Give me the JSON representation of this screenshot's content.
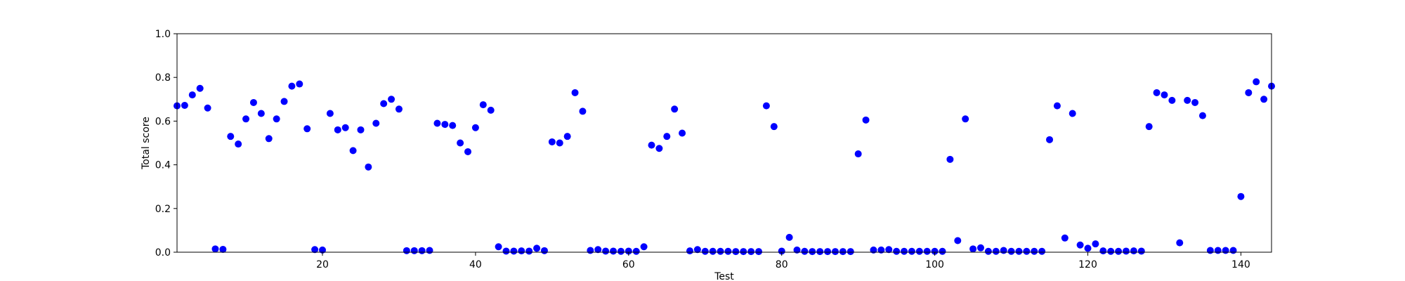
{
  "chart_data": {
    "type": "scatter",
    "title": "",
    "xlabel": "Test",
    "ylabel": "Total score",
    "xlim": [
      1,
      144
    ],
    "ylim": [
      0.0,
      1.0
    ],
    "xticks": [
      20,
      40,
      60,
      80,
      100,
      120,
      140
    ],
    "yticks": [
      0.0,
      0.2,
      0.4,
      0.6,
      0.8,
      1.0
    ],
    "ytick_labels": [
      "0.0",
      "0.2",
      "0.4",
      "0.6",
      "0.8",
      "1.0"
    ],
    "grid": false,
    "marker_color": "#0000ff",
    "series": [
      {
        "x": [
          1,
          2,
          3,
          4,
          5,
          6,
          7,
          8,
          9,
          10,
          11,
          12,
          13,
          14,
          15,
          16,
          17,
          18,
          19,
          20,
          21,
          22,
          23,
          24,
          25,
          26,
          27,
          28,
          29,
          30,
          31,
          32,
          33,
          34,
          35,
          36,
          37,
          38,
          39,
          40,
          41,
          42,
          43,
          44,
          45,
          46,
          47,
          48,
          49,
          50,
          51,
          52,
          53,
          54,
          55,
          56,
          57,
          58,
          59,
          60,
          61,
          62,
          63,
          64,
          65,
          66,
          67,
          68,
          69,
          70,
          71,
          72,
          73,
          74,
          75,
          76,
          77,
          78,
          79,
          80,
          81,
          82,
          83,
          84,
          85,
          86,
          87,
          88,
          89,
          90,
          91,
          92,
          93,
          94,
          95,
          96,
          97,
          98,
          99,
          100,
          101,
          102,
          103,
          104,
          105,
          106,
          107,
          108,
          109,
          110,
          111,
          112,
          113,
          114,
          115,
          116,
          117,
          118,
          119,
          120,
          121,
          122,
          123,
          124,
          125,
          126,
          127,
          128,
          129,
          130,
          131,
          132,
          133,
          134,
          135,
          136,
          137,
          138,
          139,
          140,
          141,
          142,
          143,
          144
        ],
        "y": [
          0.67,
          0.672,
          0.72,
          0.75,
          0.66,
          0.015,
          0.013,
          0.53,
          0.495,
          0.61,
          0.685,
          0.635,
          0.52,
          0.61,
          0.69,
          0.76,
          0.77,
          0.565,
          0.012,
          0.01,
          0.635,
          0.56,
          0.57,
          0.465,
          0.56,
          0.39,
          0.59,
          0.68,
          0.7,
          0.655,
          0.007,
          0.007,
          0.007,
          0.008,
          0.59,
          0.585,
          0.58,
          0.5,
          0.46,
          0.57,
          0.675,
          0.65,
          0.025,
          0.005,
          0.005,
          0.006,
          0.005,
          0.018,
          0.007,
          0.505,
          0.5,
          0.53,
          0.73,
          0.645,
          0.008,
          0.012,
          0.005,
          0.005,
          0.004,
          0.005,
          0.004,
          0.025,
          0.49,
          0.475,
          0.53,
          0.655,
          0.545,
          0.006,
          0.012,
          0.004,
          0.004,
          0.004,
          0.004,
          0.003,
          0.003,
          0.003,
          0.003,
          0.67,
          0.575,
          0.005,
          0.068,
          0.01,
          0.004,
          0.003,
          0.003,
          0.003,
          0.003,
          0.003,
          0.003,
          0.45,
          0.605,
          0.01,
          0.01,
          0.012,
          0.004,
          0.004,
          0.004,
          0.004,
          0.004,
          0.004,
          0.004,
          0.425,
          0.053,
          0.61,
          0.015,
          0.02,
          0.004,
          0.004,
          0.008,
          0.004,
          0.004,
          0.004,
          0.004,
          0.004,
          0.515,
          0.67,
          0.065,
          0.635,
          0.033,
          0.018,
          0.038,
          0.006,
          0.004,
          0.004,
          0.005,
          0.006,
          0.005,
          0.575,
          0.73,
          0.72,
          0.695,
          0.043,
          0.695,
          0.685,
          0.625,
          0.008,
          0.008,
          0.008,
          0.008,
          0.255,
          0.73,
          0.78,
          0.7,
          0.76
        ]
      }
    ]
  }
}
